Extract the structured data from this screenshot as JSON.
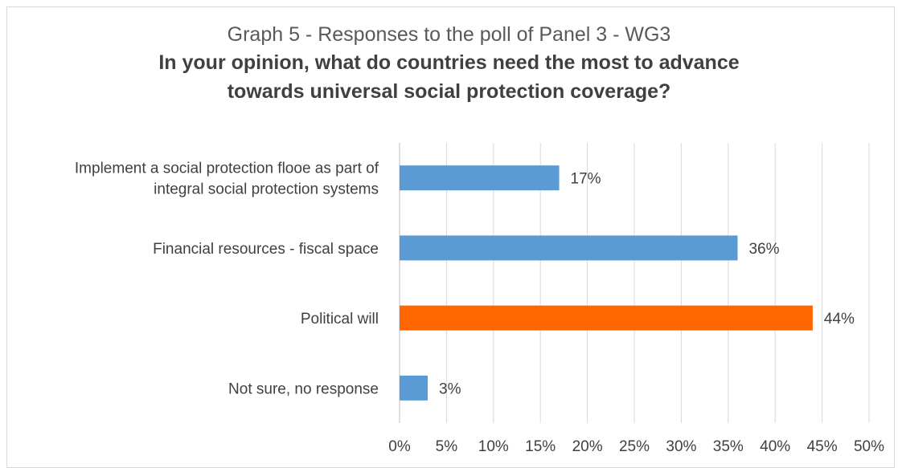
{
  "chart_data": {
    "type": "bar",
    "orientation": "horizontal",
    "title": "Graph 5 - Responses to the poll of Panel 3 - WG3",
    "subtitle_lines": [
      "In your opinion, what do countries need the most to advance",
      "towards universal social protection coverage?"
    ],
    "categories": [
      [
        "Implement a social protection flooe as part of",
        "integral social protection systems"
      ],
      [
        "Financial resources - fiscal space"
      ],
      [
        "Political will"
      ],
      [
        "Not sure, no response"
      ]
    ],
    "values": [
      17,
      36,
      44,
      3
    ],
    "value_labels": [
      "17%",
      "36%",
      "44%",
      "3%"
    ],
    "bar_colors": [
      "#5b9bd5",
      "#5b9bd5",
      "#ff6600",
      "#5b9bd5"
    ],
    "xlim": [
      0,
      50
    ],
    "xticks": [
      0,
      5,
      10,
      15,
      20,
      25,
      30,
      35,
      40,
      45,
      50
    ],
    "xtick_labels": [
      "0%",
      "5%",
      "10%",
      "15%",
      "20%",
      "25%",
      "30%",
      "35%",
      "40%",
      "45%",
      "50%"
    ],
    "xlabel": "",
    "ylabel": "",
    "grid": "vertical",
    "legend": "none"
  },
  "colors": {
    "grid": "#d9d9d9",
    "axis": "#bfbfbf",
    "text": "#404040"
  }
}
